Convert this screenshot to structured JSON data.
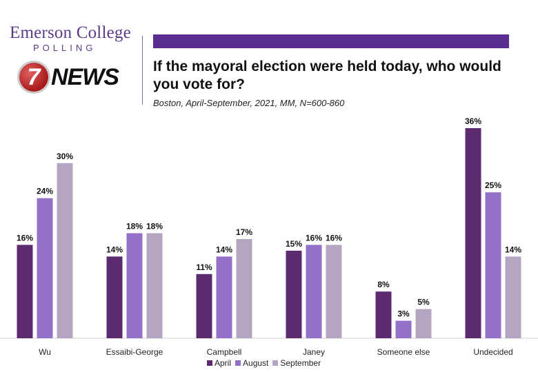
{
  "brand": {
    "emerson": "Emerson College",
    "polling": "POLLING",
    "news_badge": "7",
    "news_word": "NEWS"
  },
  "header": {
    "bar_color": "#5a2d91"
  },
  "chart_data": {
    "type": "bar",
    "title": "If the mayoral election were held today, who would you vote for?",
    "subtitle": "Boston, April-September, 2021, MM, N=600-860",
    "categories": [
      "Wu",
      "Essaibi-George",
      "Campbell",
      "Janey",
      "Someone else",
      "Undecided"
    ],
    "series": [
      {
        "name": "April",
        "color": "#5c2a6e",
        "values": [
          16,
          14,
          11,
          15,
          8,
          36
        ]
      },
      {
        "name": "August",
        "color": "#9470c8",
        "values": [
          24,
          18,
          14,
          16,
          3,
          25
        ]
      },
      {
        "name": "September",
        "color": "#b4a5c2",
        "values": [
          30,
          18,
          17,
          16,
          5,
          14
        ]
      }
    ],
    "value_suffix": "%",
    "ylim": [
      0,
      36
    ],
    "xlabel": "",
    "ylabel": "",
    "grid": false,
    "legend_position": "bottom"
  }
}
